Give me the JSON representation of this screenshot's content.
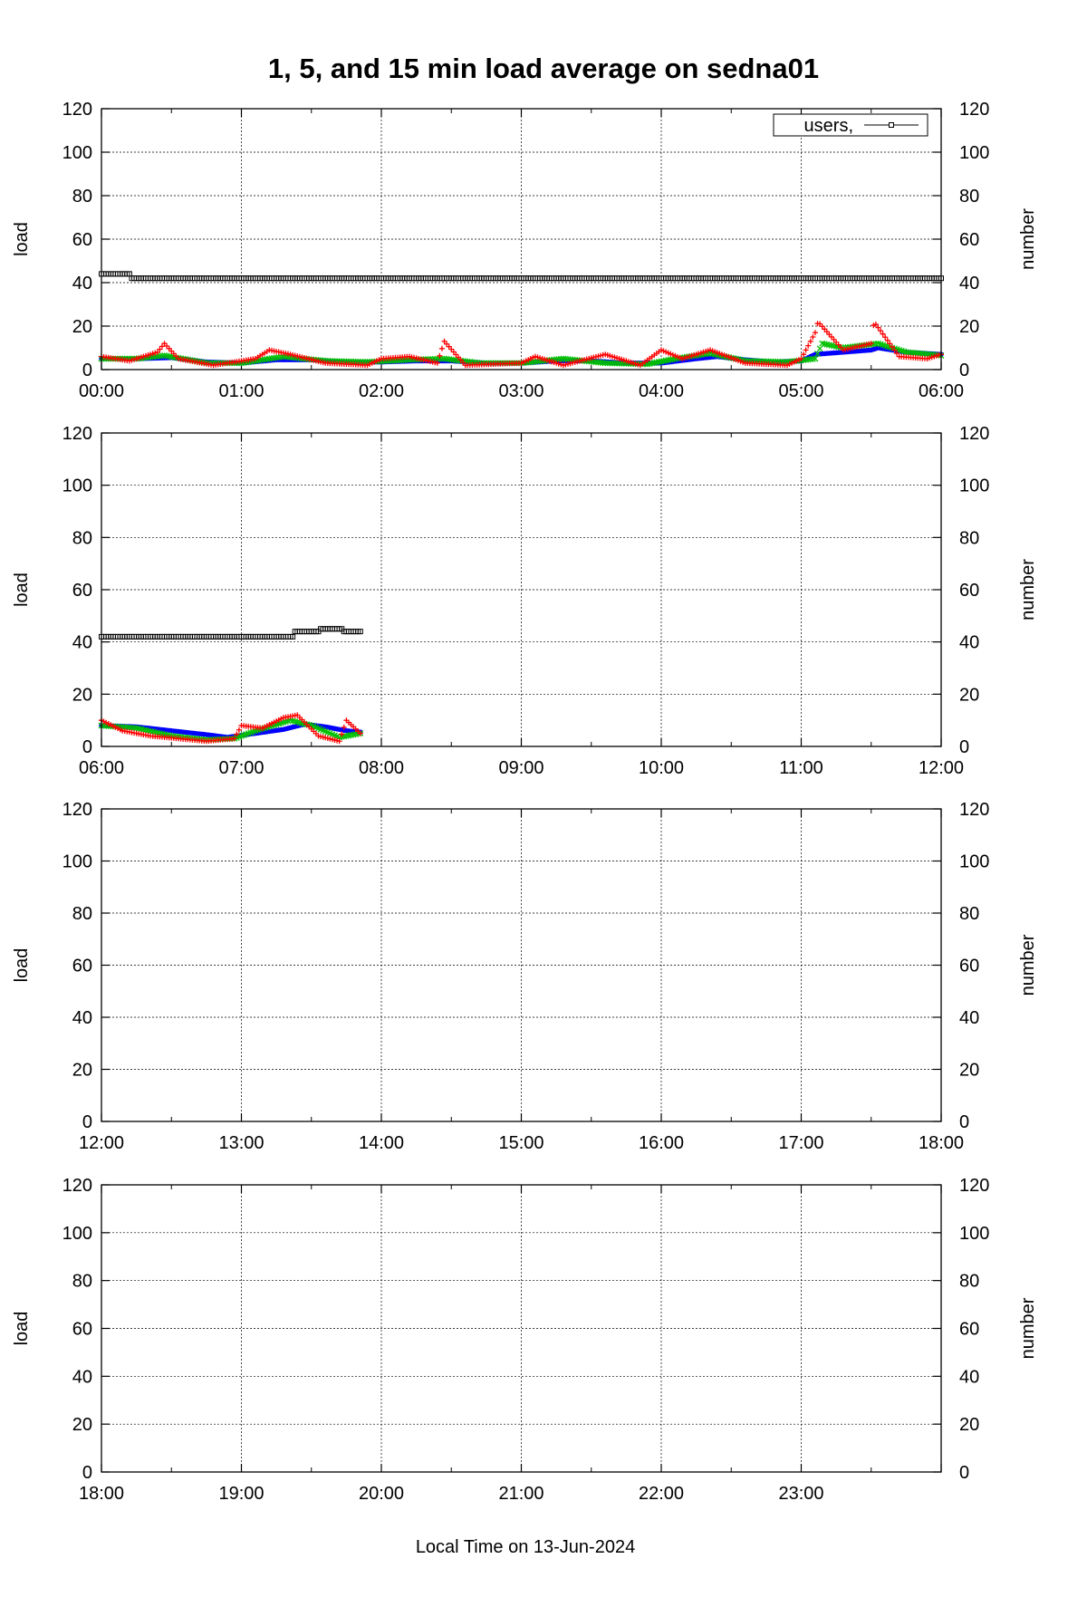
{
  "chart_data": {
    "type": "scatter",
    "title": "1, 5, and 15 min load average on sedna01",
    "xlabel": "Local Time on 13-Jun-2024",
    "ylabel_left": "load",
    "ylabel_right": "number",
    "ylim": [
      0,
      120
    ],
    "yticks": [
      "0",
      "20",
      "40",
      "60",
      "80",
      "100",
      "120"
    ],
    "grid": true,
    "legend": {
      "position": "top-right",
      "entries": [
        "users,"
      ]
    },
    "colors": {
      "load1": "#ff0000",
      "load5": "#00c000",
      "load15": "#0000ff",
      "users": "#000000"
    },
    "panels": [
      {
        "xticks": [
          "00:00",
          "01:00",
          "02:00",
          "03:00",
          "04:00",
          "05:00",
          "06:00"
        ],
        "show_legend": true,
        "series": [
          {
            "key": "users",
            "x": [
              0,
              0.1,
              0.2,
              6.0
            ],
            "y": [
              44,
              44,
              42,
              42
            ]
          },
          {
            "key": "load15",
            "x": [
              0,
              0.25,
              0.5,
              0.75,
              1.0,
              1.25,
              1.5,
              1.75,
              2.0,
              2.25,
              2.5,
              2.75,
              3.0,
              3.25,
              3.5,
              3.75,
              4.0,
              4.25,
              4.4,
              4.6,
              4.8,
              5.0,
              5.1,
              5.3,
              5.5,
              5.55,
              5.75,
              6.0
            ],
            "y": [
              5,
              5,
              5.5,
              3.5,
              3,
              4.5,
              4.5,
              3.5,
              3.5,
              4,
              4,
              3,
              3,
              4,
              4,
              3,
              3,
              5,
              6,
              4.5,
              3.5,
              4,
              7,
              8,
              9,
              10,
              8,
              7
            ]
          },
          {
            "key": "load5",
            "x": [
              0,
              0.25,
              0.45,
              0.75,
              1.0,
              1.3,
              1.6,
              1.9,
              2.2,
              2.45,
              2.7,
              3.0,
              3.3,
              3.6,
              3.9,
              4.1,
              4.35,
              4.6,
              4.9,
              5.1,
              5.15,
              5.3,
              5.55,
              5.75,
              6.0
            ],
            "y": [
              5,
              5,
              6.5,
              3,
              3,
              6,
              4,
              3.5,
              4.5,
              5,
              3,
              3,
              5,
              3,
              2.5,
              5,
              7.5,
              4,
              3.5,
              5,
              12,
              10,
              12,
              8,
              6.5
            ]
          },
          {
            "key": "load1",
            "x": [
              0,
              0.2,
              0.4,
              0.45,
              0.55,
              0.8,
              1.1,
              1.2,
              1.35,
              1.6,
              1.9,
              2.0,
              2.2,
              2.4,
              2.45,
              2.6,
              3.0,
              3.1,
              3.3,
              3.6,
              3.85,
              4.0,
              4.15,
              4.35,
              4.6,
              4.9,
              5.0,
              5.1,
              5.12,
              5.3,
              5.5,
              5.52,
              5.7,
              5.9,
              6.0
            ],
            "y": [
              6,
              4,
              8,
              12,
              5,
              2,
              5,
              9,
              7,
              3,
              2,
              5,
              6,
              3,
              13,
              2,
              3,
              6,
              2,
              7,
              2,
              9,
              5,
              9,
              3,
              2,
              5,
              17,
              22,
              9,
              12,
              22,
              6,
              5,
              7
            ]
          }
        ]
      },
      {
        "xticks": [
          "06:00",
          "07:00",
          "08:00",
          "09:00",
          "10:00",
          "11:00",
          "12:00"
        ],
        "show_legend": false,
        "series": [
          {
            "key": "users",
            "x": [
              0,
              1.37,
              1.38,
              1.55,
              1.56,
              1.72,
              1.73,
              1.85
            ],
            "y": [
              42,
              42,
              44,
              44,
              45,
              45,
              44,
              44
            ]
          },
          {
            "key": "load15",
            "x": [
              0,
              0.25,
              0.5,
              0.75,
              0.9,
              1.1,
              1.3,
              1.45,
              1.6,
              1.75,
              1.85
            ],
            "y": [
              8,
              7.5,
              6,
              4.5,
              3.5,
              5,
              6.5,
              8.5,
              7.5,
              6,
              5.5
            ]
          },
          {
            "key": "load5",
            "x": [
              0,
              0.25,
              0.5,
              0.75,
              0.95,
              1.1,
              1.35,
              1.5,
              1.7,
              1.85
            ],
            "y": [
              8,
              7,
              4,
              2.5,
              3,
              6,
              10,
              8,
              3.5,
              5
            ]
          },
          {
            "key": "load1",
            "x": [
              0,
              0.15,
              0.35,
              0.55,
              0.75,
              0.95,
              1.0,
              1.15,
              1.3,
              1.4,
              1.55,
              1.7,
              1.75,
              1.85
            ],
            "y": [
              10,
              6,
              4,
              3,
              2,
              3,
              8,
              7,
              11,
              12,
              4,
              2,
              10,
              5
            ]
          }
        ]
      },
      {
        "xticks": [
          "12:00",
          "13:00",
          "14:00",
          "15:00",
          "16:00",
          "17:00",
          "18:00"
        ],
        "show_legend": false,
        "series": []
      },
      {
        "xticks": [
          "18:00",
          "19:00",
          "20:00",
          "21:00",
          "22:00",
          "23:00"
        ],
        "show_legend": false,
        "series": []
      }
    ]
  }
}
